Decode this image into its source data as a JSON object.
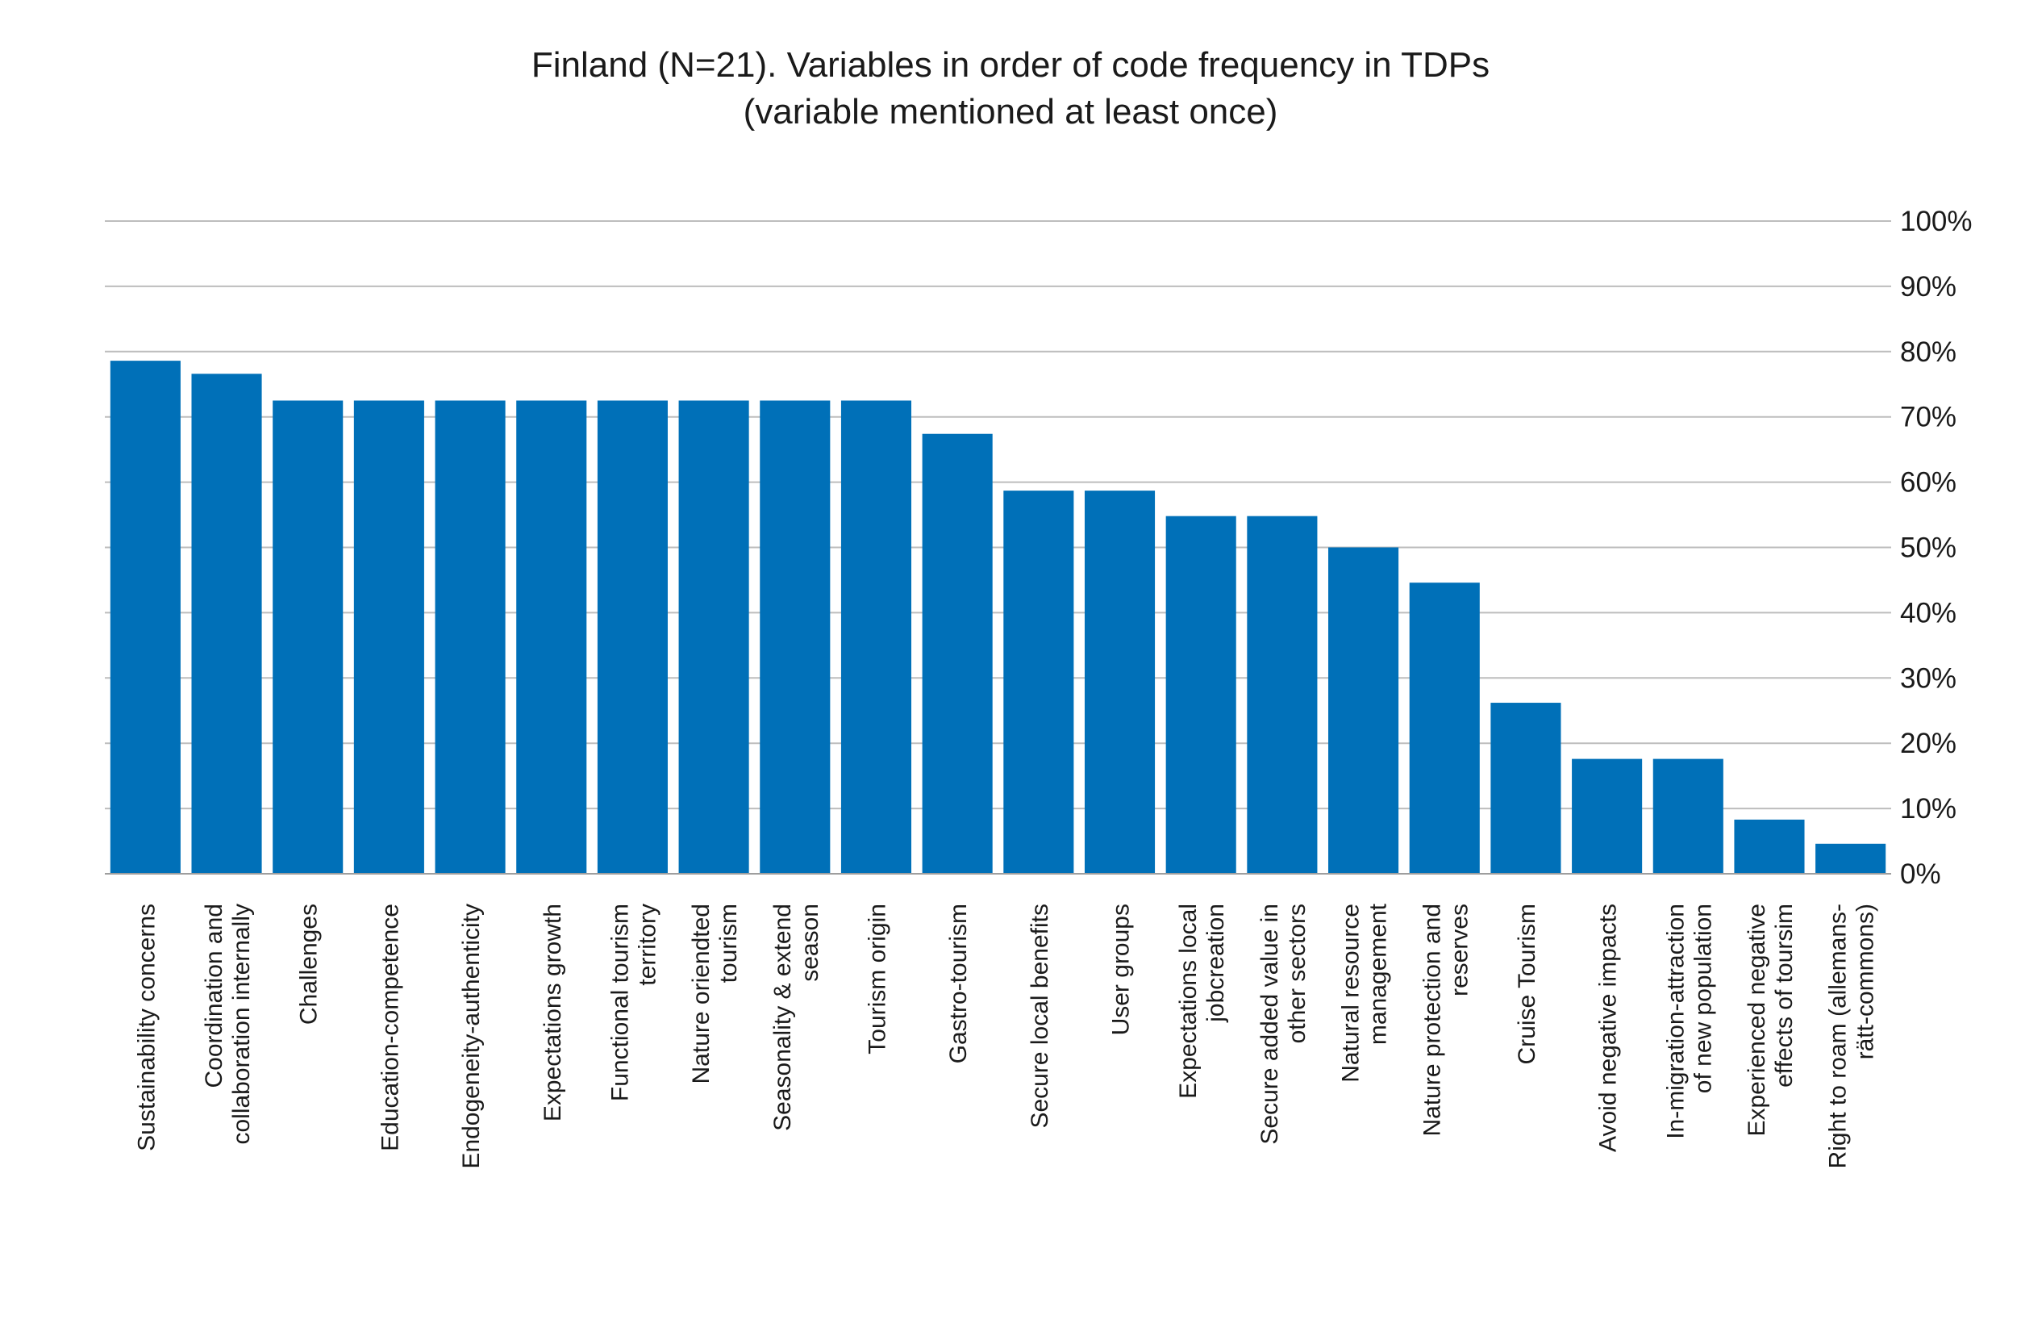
{
  "chart_data": {
    "type": "bar",
    "title": "Finland (N=21). Variables in order of code frequency in TDPs",
    "subtitle": "(variable mentioned at least once)",
    "xlabel": "",
    "ylabel": "",
    "ylim": [
      0,
      100
    ],
    "y_ticks": [
      "0%",
      "10%",
      "20%",
      "30%",
      "40%",
      "50%",
      "60%",
      "70%",
      "80%",
      "90%",
      "100%"
    ],
    "y_axis_position": "right",
    "grid": true,
    "bar_color": "#0070b8",
    "categories": [
      [
        "Sustainability concerns"
      ],
      [
        "Coordination and",
        "collaboration internally"
      ],
      [
        "Challenges"
      ],
      [
        "Education-competence"
      ],
      [
        "Endogeneity-authenticity"
      ],
      [
        "Expectations growth"
      ],
      [
        "Functional tourism",
        "territory"
      ],
      [
        "Nature oriendted",
        "tourism"
      ],
      [
        "Seasonality & extend",
        "season"
      ],
      [
        "Tourism origin"
      ],
      [
        "Gastro-tourism"
      ],
      [
        "Secure local benefits"
      ],
      [
        "User groups"
      ],
      [
        "Expectations local",
        "jobcreation"
      ],
      [
        "Secure added value in",
        "other sectors"
      ],
      [
        "Natural resource",
        "management"
      ],
      [
        "Nature protection and",
        "reserves"
      ],
      [
        "Cruise Tourism"
      ],
      [
        "Avoid negative impacts"
      ],
      [
        "In-migration-attraction",
        "of new population"
      ],
      [
        "Experienced negative",
        "effects of toursim"
      ],
      [
        "Right to roam (allemans-",
        "rätt-commons)"
      ]
    ],
    "values": [
      78.6,
      76.6,
      72.5,
      72.5,
      72.5,
      72.5,
      72.5,
      72.5,
      72.5,
      72.5,
      67.4,
      58.7,
      58.7,
      54.8,
      54.8,
      50.0,
      44.6,
      26.2,
      17.6,
      17.6,
      8.3,
      4.6
    ]
  }
}
